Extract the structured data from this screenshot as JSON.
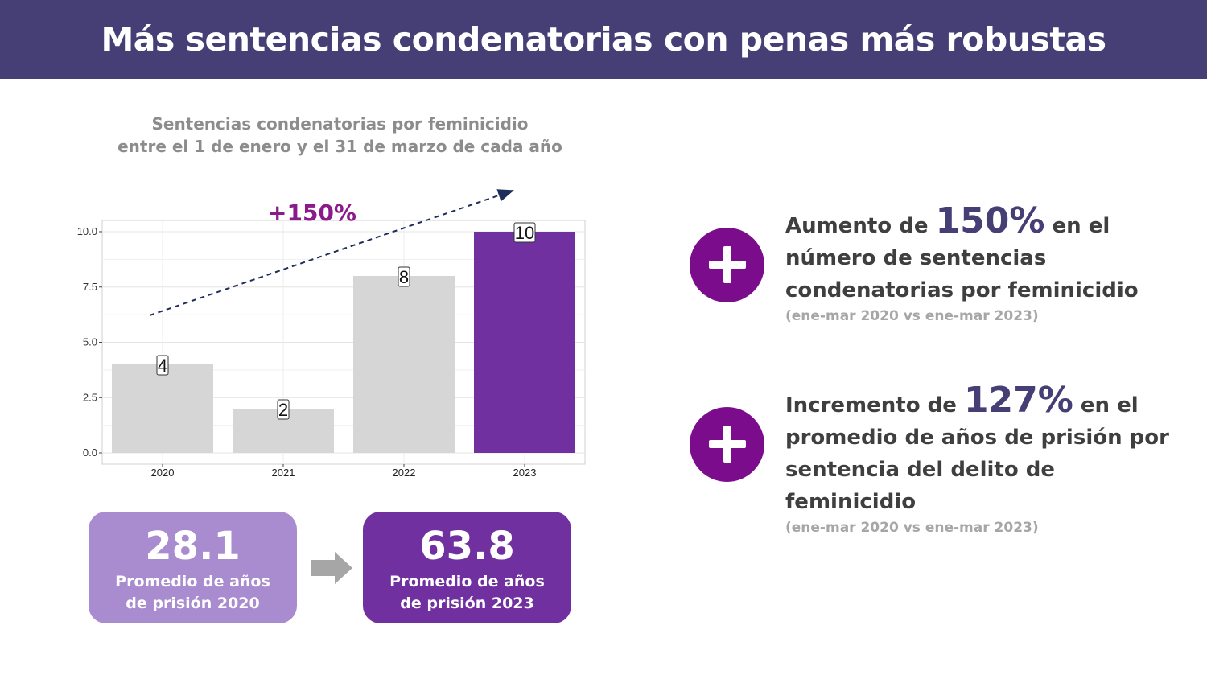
{
  "header": {
    "title": "Más sentencias condenatorias con penas más robustas"
  },
  "chart_title": {
    "line1": "Sentencias condenatorias por feminicidio",
    "line2": "entre el 1 de enero y el 31 de marzo de cada año"
  },
  "chart_data": {
    "type": "bar",
    "categories": [
      "2020",
      "2021",
      "2022",
      "2023"
    ],
    "values": [
      4,
      2,
      8,
      10
    ],
    "data_labels": [
      "4",
      "2",
      "8",
      "10"
    ],
    "ylim": [
      0,
      10.5
    ],
    "yticks": [
      0.0,
      2.5,
      5.0,
      7.5,
      10.0
    ],
    "ytick_labels": [
      "0.0",
      "2.5",
      "5.0",
      "7.5",
      "10.0"
    ],
    "grid": true,
    "bar_colors": [
      "#d6d6d6",
      "#d6d6d6",
      "#d6d6d6",
      "#7030a0"
    ],
    "annotation": "+150%",
    "annotation_color": "#8b1a8b",
    "trend_line_color": "#1f2d5a"
  },
  "stats": [
    {
      "value": "28.1",
      "label_line1": "Promedio de años",
      "label_line2": "de prisión 2020"
    },
    {
      "value": "63.8",
      "label_line1": "Promedio de años",
      "label_line2": "de prisión 2023"
    }
  ],
  "kpis": [
    {
      "icon": "plus-icon",
      "pre": "Aumento de ",
      "big": "150%",
      "post": " en el",
      "line2": "número de sentencias",
      "line3": "condenatorias por feminicidio",
      "line4": "",
      "note": "(ene-mar  2020 vs ene-mar 2023)"
    },
    {
      "icon": "plus-icon",
      "pre": "Incremento de ",
      "big": "127%",
      "post": " en el",
      "line2": "promedio de años de prisión por",
      "line3": "sentencia del delito de",
      "line4": "feminicidio",
      "note": "(ene-mar  2020 vs ene-mar 2023)"
    }
  ],
  "colors": {
    "header_bg": "#463f76",
    "accent_purple": "#7030a0",
    "light_purple": "#a98bcf",
    "plus_circle": "#7b0d8c"
  }
}
